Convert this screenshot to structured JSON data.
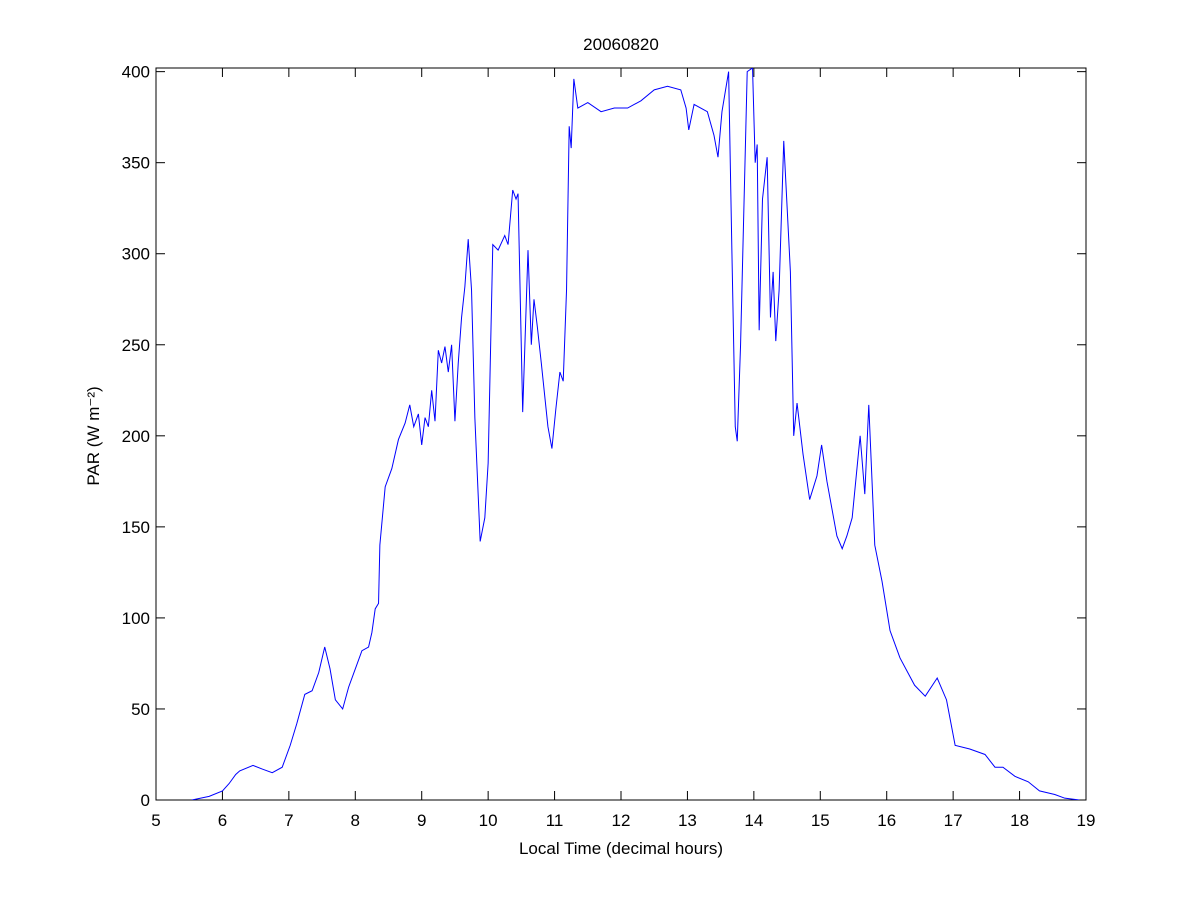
{
  "chart_data": {
    "type": "line",
    "title": "20060820",
    "xlabel": "Local Time (decimal hours)",
    "ylabel": "PAR (W m⁻²)",
    "xlim": [
      5,
      19
    ],
    "xticks": [
      5,
      6,
      7,
      8,
      9,
      10,
      11,
      12,
      13,
      14,
      15,
      16,
      17,
      18,
      19
    ],
    "ylim": [
      0,
      402
    ],
    "yticks": [
      0,
      50,
      100,
      150,
      200,
      250,
      300,
      350,
      400
    ],
    "x": [
      5.54,
      5.8,
      6.0,
      6.1,
      6.2,
      6.26,
      6.46,
      6.6,
      6.75,
      6.9,
      7.02,
      7.12,
      7.24,
      7.35,
      7.45,
      7.54,
      7.62,
      7.7,
      7.81,
      7.9,
      8.0,
      8.1,
      8.2,
      8.25,
      8.3,
      8.35,
      8.37,
      8.45,
      8.55,
      8.65,
      8.75,
      8.82,
      8.88,
      8.95,
      9.0,
      9.05,
      9.1,
      9.15,
      9.2,
      9.25,
      9.3,
      9.35,
      9.4,
      9.45,
      9.5,
      9.55,
      9.6,
      9.65,
      9.7,
      9.75,
      9.8,
      9.88,
      9.95,
      10.0,
      10.07,
      10.15,
      10.25,
      10.3,
      10.37,
      10.42,
      10.45,
      10.52,
      10.6,
      10.65,
      10.69,
      10.74,
      10.8,
      10.9,
      10.96,
      11.02,
      11.08,
      11.13,
      11.18,
      11.22,
      11.25,
      11.29,
      11.35,
      11.5,
      11.7,
      11.9,
      12.1,
      12.3,
      12.5,
      12.7,
      12.9,
      12.98,
      13.02,
      13.1,
      13.3,
      13.4,
      13.46,
      13.52,
      13.62,
      13.67,
      13.72,
      13.75,
      13.8,
      13.9,
      13.98,
      14.02,
      14.05,
      14.08,
      14.13,
      14.2,
      14.25,
      14.29,
      14.33,
      14.38,
      14.45,
      14.55,
      14.6,
      14.65,
      14.74,
      14.84,
      14.95,
      15.02,
      15.1,
      15.15,
      15.25,
      15.33,
      15.4,
      15.48,
      15.6,
      15.67,
      15.73,
      15.82,
      15.93,
      16.05,
      16.2,
      16.42,
      16.58,
      16.76,
      16.9,
      17.03,
      17.25,
      17.48,
      17.63,
      17.75,
      17.93,
      18.13,
      18.3,
      18.53,
      18.68,
      18.9
    ],
    "series": [
      {
        "color": "#0000ff",
        "values": [
          0,
          2,
          5,
          9,
          14,
          16,
          19,
          17,
          15,
          18,
          30,
          42,
          58,
          60,
          70,
          84,
          72,
          55,
          50,
          62,
          72,
          82,
          84,
          92,
          105,
          108,
          140,
          172,
          182,
          198,
          207,
          217,
          205,
          212,
          195,
          210,
          205,
          225,
          208,
          247,
          240,
          249,
          235,
          250,
          208,
          240,
          265,
          282,
          308,
          280,
          210,
          142,
          155,
          185,
          305,
          302,
          310,
          305,
          335,
          330,
          333,
          213,
          302,
          250,
          275,
          260,
          240,
          205,
          193,
          215,
          235,
          230,
          280,
          370,
          358,
          396,
          380,
          383,
          378,
          380,
          380,
          384,
          390,
          392,
          390,
          380,
          368,
          382,
          378,
          365,
          353,
          378,
          400,
          300,
          205,
          197,
          250,
          400,
          402,
          350,
          360,
          258,
          330,
          353,
          265,
          290,
          252,
          280,
          362,
          290,
          200,
          218,
          190,
          165,
          178,
          195,
          175,
          165,
          145,
          138,
          145,
          155,
          200,
          168,
          217,
          140,
          120,
          93,
          78,
          63,
          57,
          67,
          55,
          30,
          28,
          25,
          18,
          18,
          13,
          10,
          5,
          3,
          1,
          0
        ]
      }
    ]
  }
}
